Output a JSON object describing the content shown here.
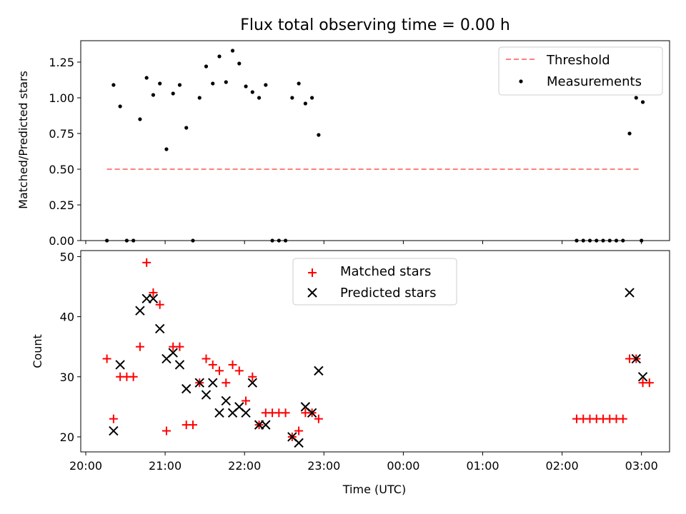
{
  "chart_data": [
    {
      "type": "scatter",
      "title": "Flux total observing time = 0.00 h",
      "xlabel": "",
      "ylabel": "Matched/Predicted stars",
      "xlim": [
        "20:00",
        "03:00"
      ],
      "ylim": [
        0,
        1.4
      ],
      "yticks": [
        "0.00",
        "0.25",
        "0.50",
        "0.75",
        "1.00",
        "1.25"
      ],
      "legend_position": "top-right",
      "threshold": {
        "name": "Threshold",
        "value": 0.5,
        "x_start": "20:16",
        "x_end": "03:00",
        "color": "#ff7f7f",
        "style": "dashed"
      },
      "series": [
        {
          "name": "Measurements",
          "marker": "dot",
          "color": "#000000",
          "points": [
            [
              "20:16",
              0.0
            ],
            [
              "20:21",
              1.09
            ],
            [
              "20:26",
              0.94
            ],
            [
              "20:31",
              0.0
            ],
            [
              "20:36",
              0.0
            ],
            [
              "20:41",
              0.85
            ],
            [
              "20:46",
              1.14
            ],
            [
              "20:51",
              1.02
            ],
            [
              "20:56",
              1.1
            ],
            [
              "21:01",
              0.64
            ],
            [
              "21:06",
              1.03
            ],
            [
              "21:11",
              1.09
            ],
            [
              "21:16",
              0.79
            ],
            [
              "21:21",
              0.0
            ],
            [
              "21:26",
              1.0
            ],
            [
              "21:31",
              1.22
            ],
            [
              "21:36",
              1.1
            ],
            [
              "21:41",
              1.29
            ],
            [
              "21:46",
              1.11
            ],
            [
              "21:51",
              1.33
            ],
            [
              "21:56",
              1.24
            ],
            [
              "22:01",
              1.08
            ],
            [
              "22:06",
              1.04
            ],
            [
              "22:11",
              1.0
            ],
            [
              "22:16",
              1.09
            ],
            [
              "22:21",
              0.0
            ],
            [
              "22:26",
              0.0
            ],
            [
              "22:31",
              0.0
            ],
            [
              "22:36",
              1.0
            ],
            [
              "22:41",
              1.1
            ],
            [
              "22:46",
              0.96
            ],
            [
              "22:51",
              1.0
            ],
            [
              "22:56",
              0.74
            ],
            [
              "02:11",
              0.0
            ],
            [
              "02:16",
              0.0
            ],
            [
              "02:21",
              0.0
            ],
            [
              "02:26",
              0.0
            ],
            [
              "02:31",
              0.0
            ],
            [
              "02:36",
              0.0
            ],
            [
              "02:41",
              0.0
            ],
            [
              "02:46",
              0.0
            ],
            [
              "02:51",
              0.75
            ],
            [
              "02:56",
              1.0
            ],
            [
              "03:01",
              0.97
            ],
            [
              "03:00",
              0.0
            ]
          ]
        }
      ]
    },
    {
      "type": "scatter",
      "title": "",
      "xlabel": "Time (UTC)",
      "ylabel": "Count",
      "xlim": [
        "20:00",
        "03:00"
      ],
      "xticks": [
        "20:00",
        "21:00",
        "22:00",
        "23:00",
        "00:00",
        "01:00",
        "02:00",
        "03:00"
      ],
      "ylim": [
        17.5,
        51
      ],
      "yticks": [
        "20",
        "30",
        "40",
        "50"
      ],
      "legend_position": "top-center",
      "series": [
        {
          "name": "Matched stars",
          "marker": "plus",
          "color": "#ff0000",
          "points": [
            [
              "20:16",
              33
            ],
            [
              "20:21",
              23
            ],
            [
              "20:26",
              30
            ],
            [
              "20:31",
              30
            ],
            [
              "20:36",
              30
            ],
            [
              "20:41",
              35
            ],
            [
              "20:46",
              49
            ],
            [
              "20:51",
              44
            ],
            [
              "20:56",
              42
            ],
            [
              "21:01",
              21
            ],
            [
              "21:06",
              35
            ],
            [
              "21:11",
              35
            ],
            [
              "21:16",
              22
            ],
            [
              "21:21",
              22
            ],
            [
              "21:26",
              29
            ],
            [
              "21:31",
              33
            ],
            [
              "21:36",
              32
            ],
            [
              "21:41",
              31
            ],
            [
              "21:46",
              29
            ],
            [
              "21:51",
              32
            ],
            [
              "21:56",
              31
            ],
            [
              "22:01",
              26
            ],
            [
              "22:06",
              30
            ],
            [
              "22:11",
              22
            ],
            [
              "22:16",
              24
            ],
            [
              "22:21",
              24
            ],
            [
              "22:26",
              24
            ],
            [
              "22:31",
              24
            ],
            [
              "22:36",
              20
            ],
            [
              "22:41",
              21
            ],
            [
              "22:46",
              24
            ],
            [
              "22:51",
              24
            ],
            [
              "22:56",
              23
            ],
            [
              "02:11",
              23
            ],
            [
              "02:16",
              23
            ],
            [
              "02:21",
              23
            ],
            [
              "02:26",
              23
            ],
            [
              "02:31",
              23
            ],
            [
              "02:36",
              23
            ],
            [
              "02:41",
              23
            ],
            [
              "02:46",
              23
            ],
            [
              "02:51",
              33
            ],
            [
              "02:56",
              33
            ],
            [
              "03:01",
              29
            ],
            [
              "03:06",
              29
            ]
          ]
        },
        {
          "name": "Predicted stars",
          "marker": "x",
          "color": "#000000",
          "points": [
            [
              "20:21",
              21
            ],
            [
              "20:26",
              32
            ],
            [
              "20:41",
              41
            ],
            [
              "20:46",
              43
            ],
            [
              "20:51",
              43
            ],
            [
              "20:56",
              38
            ],
            [
              "21:01",
              33
            ],
            [
              "21:06",
              34
            ],
            [
              "21:11",
              32
            ],
            [
              "21:16",
              28
            ],
            [
              "21:26",
              29
            ],
            [
              "21:31",
              27
            ],
            [
              "21:36",
              29
            ],
            [
              "21:41",
              24
            ],
            [
              "21:46",
              26
            ],
            [
              "21:51",
              24
            ],
            [
              "21:56",
              25
            ],
            [
              "22:01",
              24
            ],
            [
              "22:06",
              29
            ],
            [
              "22:11",
              22
            ],
            [
              "22:16",
              22
            ],
            [
              "22:36",
              20
            ],
            [
              "22:41",
              19
            ],
            [
              "22:46",
              25
            ],
            [
              "22:51",
              24
            ],
            [
              "22:56",
              31
            ],
            [
              "02:51",
              44
            ],
            [
              "02:56",
              33
            ],
            [
              "03:01",
              30
            ]
          ]
        }
      ]
    }
  ]
}
